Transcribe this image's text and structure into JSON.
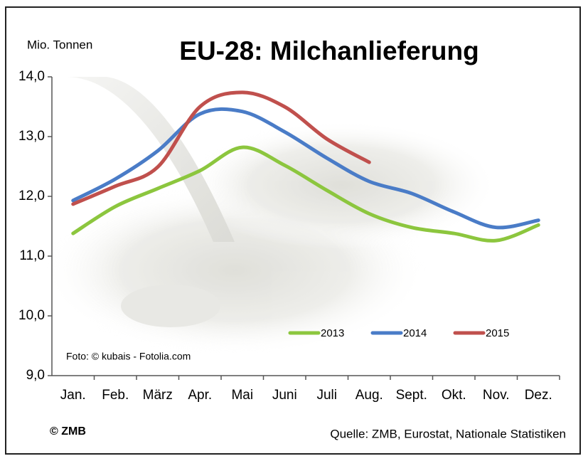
{
  "chart_data": {
    "type": "line",
    "title": "EU-28: Milchanlieferung",
    "y_axis_label": "Mio. Tonnen",
    "photo_credit": "Foto: © kubais - Fotolia.com",
    "copyright": "© ZMB",
    "source": "Quelle: ZMB, Eurostat,  Nationale Statistiken",
    "categories": [
      "Jan.",
      "Feb.",
      "März",
      "Apr.",
      "Mai",
      "Juni",
      "Juli",
      "Aug.",
      "Sept.",
      "Okt.",
      "Nov.",
      "Dez."
    ],
    "ylim": [
      9,
      14
    ],
    "yticks": [
      {
        "value": 9,
        "label": "9,0"
      },
      {
        "value": 10,
        "label": "10,0"
      },
      {
        "value": 11,
        "label": "11,0"
      },
      {
        "value": 12,
        "label": "12,0"
      },
      {
        "value": 13,
        "label": "13,0"
      },
      {
        "value": 14,
        "label": "14,0"
      }
    ],
    "smooth": true,
    "series": [
      {
        "name": "2013",
        "color": "#8cc63e",
        "values": [
          11.38,
          11.83,
          12.13,
          12.43,
          12.82,
          12.52,
          12.1,
          11.71,
          11.48,
          11.38,
          11.26,
          11.52
        ]
      },
      {
        "name": "2014",
        "color": "#4a7cc7",
        "values": [
          11.93,
          12.29,
          12.76,
          13.38,
          13.42,
          13.08,
          12.64,
          12.25,
          12.05,
          11.74,
          11.48,
          11.6
        ]
      },
      {
        "name": "2015",
        "color": "#c0504d",
        "values": [
          11.87,
          12.17,
          12.49,
          13.5,
          13.74,
          13.5,
          12.96,
          12.57,
          null,
          null,
          null,
          null
        ]
      }
    ]
  }
}
